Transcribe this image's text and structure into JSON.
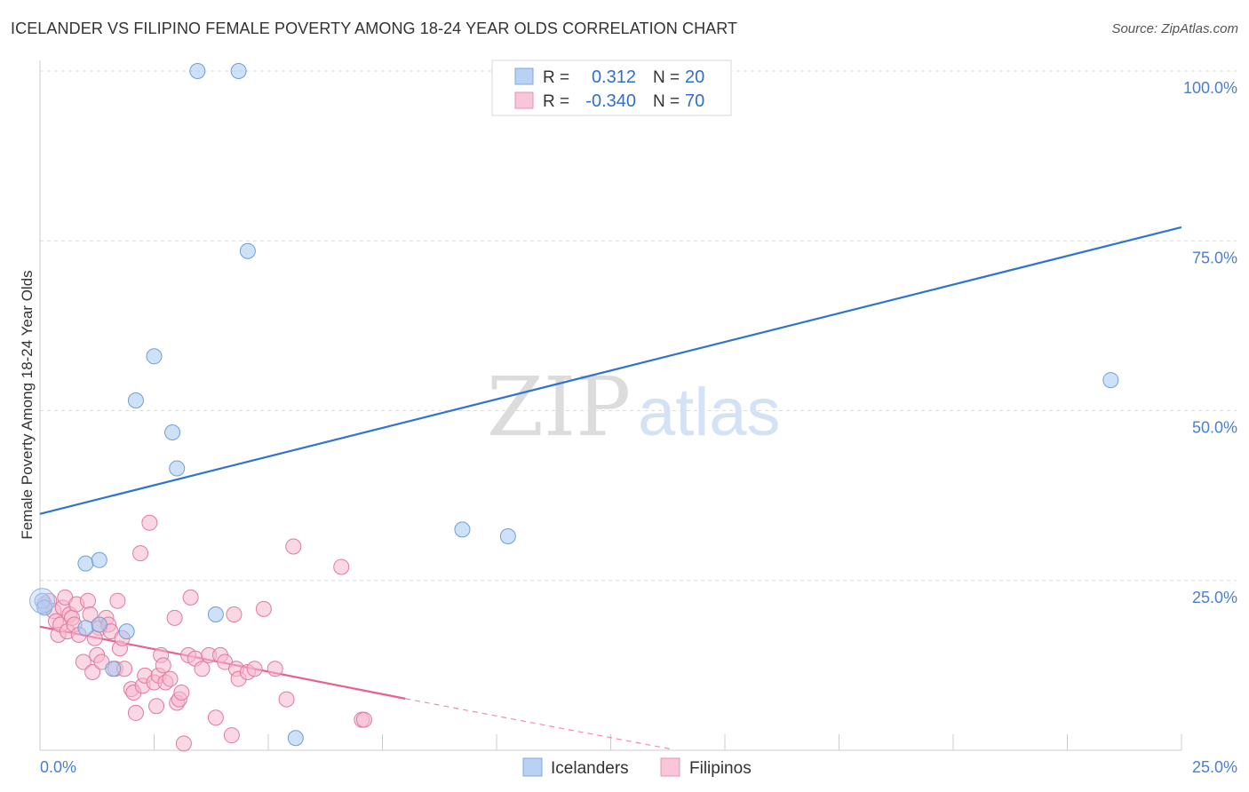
{
  "title": "ICELANDER VS FILIPINO FEMALE POVERTY AMONG 18-24 YEAR OLDS CORRELATION CHART",
  "source": "Source: ZipAtlas.com",
  "watermark": {
    "zip": "ZIP",
    "atlas": "atlas"
  },
  "chart_data": {
    "type": "scatter",
    "title": "ICELANDER VS FILIPINO FEMALE POVERTY AMONG 18-24 YEAR OLDS CORRELATION CHART",
    "ylabel": "Female Poverty Among 18-24 Year Olds",
    "xlabel": "",
    "xlim": [
      0,
      25
    ],
    "ylim": [
      0,
      100
    ],
    "x_tick_labels": [
      {
        "value": 0,
        "label": "0.0%"
      },
      {
        "value": 25,
        "label": "25.0%"
      }
    ],
    "y_tick_labels": [
      {
        "value": 25,
        "label": "25.0%"
      },
      {
        "value": 50,
        "label": "50.0%"
      },
      {
        "value": 75,
        "label": "75.0%"
      },
      {
        "value": 100,
        "label": "100.0%"
      }
    ],
    "grid": true,
    "legend_position": "top-center",
    "series": [
      {
        "name": "Icelanders",
        "color": "#a8c8f0",
        "edge": "#6f9fd8",
        "line_color": "#2f74d0",
        "R": "0.312",
        "N": "20",
        "trend": {
          "x0": 0,
          "y0": 34.8,
          "x1": 25,
          "y1": 77.0
        },
        "points": [
          [
            0.05,
            22.0
          ],
          [
            0.1,
            21.0
          ],
          [
            1.0,
            18.0
          ],
          [
            1.3,
            18.5
          ],
          [
            1.0,
            27.5
          ],
          [
            1.3,
            28.0
          ],
          [
            1.6,
            12.0
          ],
          [
            1.9,
            17.5
          ],
          [
            2.1,
            51.5
          ],
          [
            2.5,
            58.0
          ],
          [
            2.9,
            46.8
          ],
          [
            3.0,
            41.5
          ],
          [
            3.45,
            100.0
          ],
          [
            3.85,
            20.0
          ],
          [
            4.35,
            100.0
          ],
          [
            4.55,
            73.5
          ],
          [
            5.6,
            1.8
          ],
          [
            9.25,
            32.5
          ],
          [
            10.25,
            31.5
          ],
          [
            23.45,
            54.5
          ]
        ]
      },
      {
        "name": "Filipinos",
        "color": "#f5b8cc",
        "edge": "#e07aa0",
        "line_color": "#e8608f",
        "R": "-0.340",
        "N": "70",
        "trend": {
          "x0": 0,
          "y0": 18.2,
          "x1": 8.0,
          "y1": 7.6,
          "dash_x1": 13.8,
          "dash_y1": 0.2
        },
        "points": [
          [
            0.1,
            21.5
          ],
          [
            0.2,
            22.0
          ],
          [
            0.3,
            20.5
          ],
          [
            0.35,
            19.0
          ],
          [
            0.4,
            17.0
          ],
          [
            0.45,
            18.5
          ],
          [
            0.5,
            21.0
          ],
          [
            0.55,
            22.5
          ],
          [
            0.6,
            17.5
          ],
          [
            0.65,
            20.0
          ],
          [
            0.7,
            19.5
          ],
          [
            0.75,
            18.5
          ],
          [
            0.8,
            21.5
          ],
          [
            0.85,
            17.0
          ],
          [
            0.95,
            13.0
          ],
          [
            1.05,
            22.0
          ],
          [
            1.1,
            20.0
          ],
          [
            1.15,
            11.5
          ],
          [
            1.25,
            14.0
          ],
          [
            1.3,
            18.0
          ],
          [
            1.35,
            13.0
          ],
          [
            1.45,
            19.5
          ],
          [
            1.5,
            18.5
          ],
          [
            1.55,
            17.5
          ],
          [
            1.65,
            12.0
          ],
          [
            1.7,
            22.0
          ],
          [
            1.75,
            15.0
          ],
          [
            1.8,
            16.5
          ],
          [
            1.85,
            12.0
          ],
          [
            2.0,
            9.0
          ],
          [
            2.05,
            8.5
          ],
          [
            2.1,
            5.5
          ],
          [
            2.2,
            29.0
          ],
          [
            2.25,
            9.5
          ],
          [
            2.3,
            11.0
          ],
          [
            2.4,
            33.5
          ],
          [
            2.5,
            10.0
          ],
          [
            2.55,
            6.5
          ],
          [
            2.6,
            11.0
          ],
          [
            2.65,
            14.0
          ],
          [
            2.7,
            12.5
          ],
          [
            2.75,
            10.0
          ],
          [
            2.85,
            10.5
          ],
          [
            2.95,
            19.5
          ],
          [
            3.0,
            7.0
          ],
          [
            3.05,
            7.5
          ],
          [
            3.1,
            8.5
          ],
          [
            3.15,
            1.0
          ],
          [
            3.25,
            14.0
          ],
          [
            3.3,
            22.5
          ],
          [
            3.4,
            13.5
          ],
          [
            3.55,
            12.0
          ],
          [
            3.7,
            14.0
          ],
          [
            3.85,
            4.8
          ],
          [
            3.95,
            14.0
          ],
          [
            4.05,
            13.0
          ],
          [
            4.2,
            2.2
          ],
          [
            4.25,
            20.0
          ],
          [
            4.3,
            12.0
          ],
          [
            4.35,
            10.5
          ],
          [
            4.55,
            11.5
          ],
          [
            4.7,
            12.0
          ],
          [
            4.9,
            20.8
          ],
          [
            5.15,
            12.0
          ],
          [
            5.4,
            7.5
          ],
          [
            5.55,
            30.0
          ],
          [
            6.6,
            27.0
          ],
          [
            7.05,
            4.5
          ],
          [
            7.1,
            4.5
          ],
          [
            1.2,
            16.5
          ]
        ]
      }
    ]
  },
  "legend": {
    "r_label": "R =",
    "n_label": "N ="
  }
}
